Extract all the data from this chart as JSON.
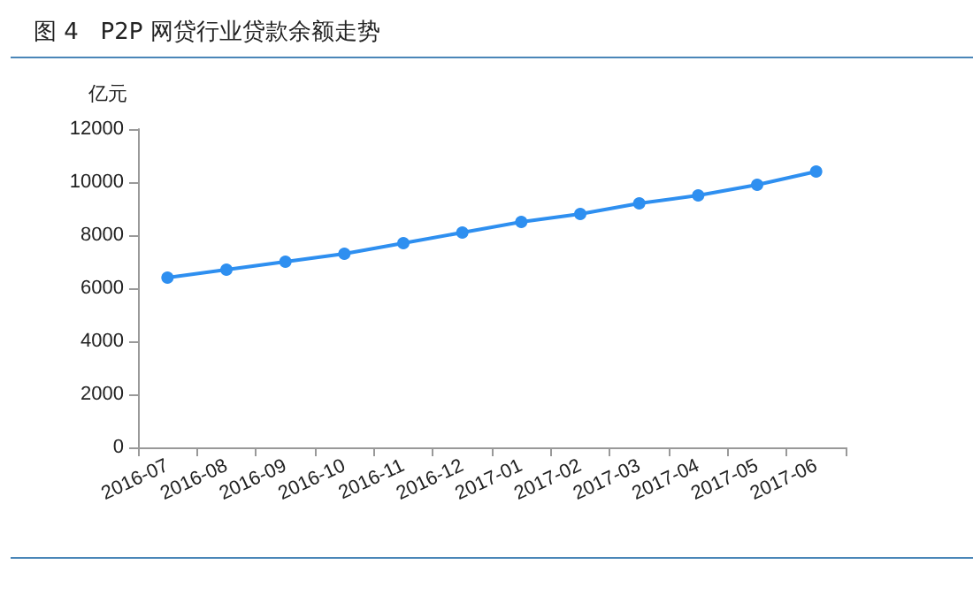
{
  "chart_data": {
    "type": "line",
    "title": "图 4   P2P 网贷行业贷款余额走势",
    "ylabel": "亿元",
    "categories": [
      "2016-07",
      "2016-08",
      "2016-09",
      "2016-10",
      "2016-11",
      "2016-12",
      "2017-01",
      "2017-02",
      "2017-03",
      "2017-04",
      "2017-05",
      "2017-06"
    ],
    "series": [
      {
        "color": "#2e8ff0",
        "values": [
          6400,
          6700,
          7000,
          7300,
          7700,
          8100,
          8500,
          8800,
          9200,
          9500,
          9900,
          10400
        ]
      }
    ],
    "ylim": [
      0,
      12000
    ],
    "yticks": [
      0,
      2000,
      4000,
      6000,
      8000,
      10000,
      12000
    ],
    "grid": false,
    "marker": "circle",
    "line_style": "solid"
  }
}
